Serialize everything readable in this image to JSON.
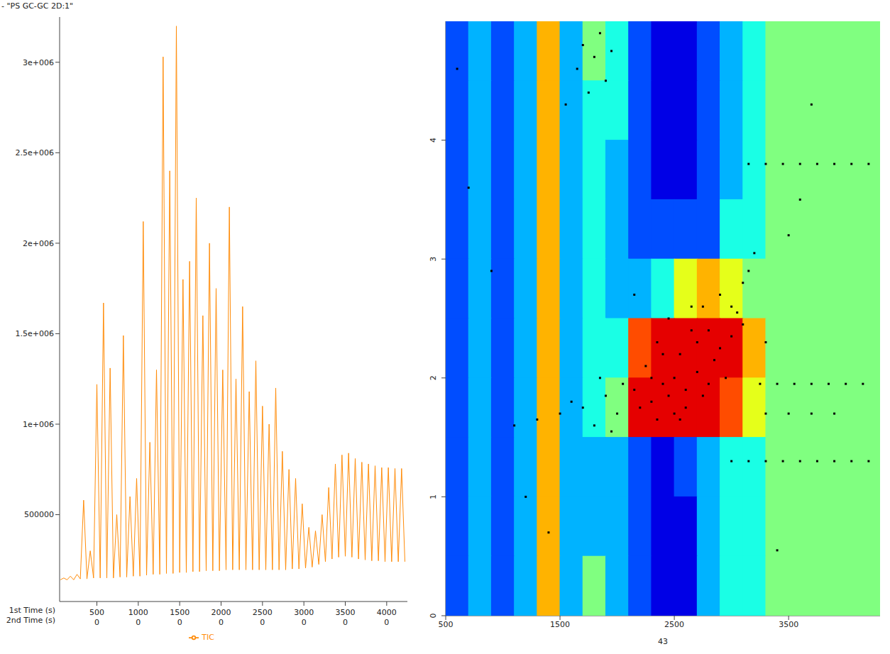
{
  "chart_data": [
    {
      "type": "line",
      "title": "- \"PS GC-GC 2D:1\"",
      "x_label": "1st Time (s)",
      "x2_label": "2nd Time (s)",
      "x": [
        60,
        100,
        140,
        180,
        220,
        260,
        300,
        340,
        380,
        420,
        460,
        500,
        540,
        580,
        620,
        660,
        700,
        740,
        780,
        820,
        860,
        900,
        940,
        980,
        1020,
        1060,
        1100,
        1140,
        1180,
        1220,
        1260,
        1300,
        1340,
        1380,
        1420,
        1460,
        1500,
        1540,
        1580,
        1620,
        1660,
        1700,
        1740,
        1780,
        1820,
        1860,
        1900,
        1940,
        1980,
        2020,
        2060,
        2100,
        2140,
        2180,
        2220,
        2260,
        2300,
        2340,
        2380,
        2420,
        2460,
        2500,
        2540,
        2580,
        2620,
        2660,
        2700,
        2740,
        2780,
        2820,
        2860,
        2900,
        2940,
        2980,
        3020,
        3060,
        3100,
        3140,
        3180,
        3220,
        3260,
        3300,
        3340,
        3380,
        3420,
        3460,
        3500,
        3540,
        3580,
        3620,
        3660,
        3700,
        3740,
        3780,
        3820,
        3860,
        3900,
        3940,
        3980,
        4020,
        4060,
        4100,
        4140,
        4180,
        4220
      ],
      "series": [
        {
          "name": "TIC",
          "color": "#ff8c0a",
          "values": [
            140000,
            150000,
            140000,
            160000,
            140000,
            170000,
            145000,
            580000,
            145000,
            300000,
            150000,
            1220000,
            150000,
            1670000,
            150000,
            1310000,
            150000,
            500000,
            155000,
            1490000,
            155000,
            600000,
            160000,
            700000,
            160000,
            2120000,
            165000,
            900000,
            170000,
            1300000,
            170000,
            3030000,
            175000,
            2400000,
            175000,
            3200000,
            180000,
            1800000,
            180000,
            1900000,
            185000,
            2250000,
            185000,
            1600000,
            190000,
            2000000,
            190000,
            1750000,
            190000,
            1300000,
            195000,
            2200000,
            195000,
            1250000,
            195000,
            1650000,
            195000,
            1180000,
            195000,
            1350000,
            195000,
            1100000,
            195000,
            1000000,
            195000,
            1200000,
            195000,
            850000,
            195000,
            750000,
            200000,
            700000,
            200000,
            560000,
            205000,
            430000,
            210000,
            410000,
            225000,
            500000,
            240000,
            650000,
            255000,
            780000,
            265000,
            830000,
            270000,
            840000,
            265000,
            810000,
            255000,
            790000,
            250000,
            780000,
            245000,
            770000,
            245000,
            760000,
            240000,
            760000,
            240000,
            755000,
            240000,
            755000,
            240000
          ]
        }
      ],
      "xlim": [
        50,
        4250
      ],
      "xticks": [
        500,
        1000,
        1500,
        2000,
        2500,
        3000,
        3500,
        4000
      ],
      "second_time_ticks": [
        0,
        0,
        0,
        0,
        0,
        0,
        0,
        0
      ],
      "ylim": [
        20000,
        3250000
      ],
      "yticks": [
        500000,
        {
          "value": 1000000,
          "label": "1e+006"
        },
        {
          "value": 1500000,
          "label": "1.5e+006"
        },
        {
          "value": 2000000,
          "label": "2e+006"
        },
        {
          "value": 2500000,
          "label": "2.5e+006"
        },
        {
          "value": 3000000,
          "label": "3e+006"
        }
      ],
      "legend": "bottom"
    },
    {
      "type": "heatmap",
      "x_label": "43",
      "xlim": [
        500,
        4300
      ],
      "xticks": [
        500,
        1500,
        2500,
        3500
      ],
      "ylim": [
        0,
        5
      ],
      "yticks": [
        0,
        1,
        2,
        3,
        4
      ],
      "cells": {
        "x": [
          600,
          800,
          1000,
          1200,
          1400,
          1600,
          1800,
          2000,
          2200,
          2400,
          2600,
          2800,
          3000,
          3200,
          3400,
          3600,
          3800,
          4000,
          4200
        ],
        "y": [
          4.75,
          4.25,
          3.75,
          3.25,
          2.75,
          2.25,
          1.75,
          1.25,
          0.75,
          0.25
        ],
        "values": [
          [
            2,
            3,
            2,
            3,
            7,
            3,
            5,
            4,
            2,
            1,
            1,
            2,
            3,
            4,
            5,
            5,
            5,
            5,
            5
          ],
          [
            2,
            3,
            2,
            3,
            7,
            3,
            4,
            4,
            2,
            1,
            1,
            2,
            3,
            4,
            5,
            5,
            5,
            5,
            5
          ],
          [
            2,
            3,
            2,
            3,
            7,
            3,
            4,
            3,
            2,
            1,
            1,
            2,
            3,
            4,
            5,
            5,
            5,
            5,
            5
          ],
          [
            2,
            3,
            2,
            3,
            7,
            3,
            4,
            3,
            2,
            2,
            2,
            2,
            4,
            4,
            5,
            5,
            5,
            5,
            5
          ],
          [
            2,
            3,
            2,
            3,
            7,
            3,
            4,
            3,
            3,
            4,
            6,
            7,
            6,
            5,
            5,
            5,
            5,
            5,
            5
          ],
          [
            2,
            3,
            2,
            3,
            7,
            3,
            4,
            4,
            8,
            9,
            9,
            9,
            9,
            7,
            5,
            5,
            5,
            5,
            5
          ],
          [
            2,
            3,
            2,
            3,
            7,
            3,
            4,
            5,
            9,
            9,
            9,
            9,
            8,
            6,
            5,
            5,
            5,
            5,
            5
          ],
          [
            2,
            3,
            2,
            3,
            7,
            3,
            3,
            3,
            2,
            1,
            2,
            3,
            4,
            4,
            5,
            5,
            5,
            5,
            5
          ],
          [
            2,
            3,
            2,
            3,
            7,
            3,
            3,
            3,
            2,
            1,
            1,
            3,
            4,
            4,
            5,
            5,
            5,
            5,
            5
          ],
          [
            2,
            3,
            2,
            3,
            7,
            3,
            5,
            3,
            2,
            1,
            1,
            3,
            4,
            4,
            5,
            5,
            5,
            5,
            5
          ]
        ]
      },
      "color_range": [
        0,
        10
      ],
      "points": {
        "color": "#000000",
        "x": [
          2150,
          2200,
          2250,
          2300,
          2350,
          2400,
          2450,
          2500,
          2550,
          2600,
          2650,
          2700,
          2750,
          2800,
          2850,
          2900,
          2950,
          3000,
          3050,
          3100,
          3150,
          3200,
          2300,
          2400,
          2500,
          2600,
          2700,
          2800,
          2900,
          2450,
          2550,
          2350,
          2650,
          2750,
          3000,
          3100,
          1100,
          1300,
          1500,
          1600,
          1700,
          1800,
          1900,
          2000,
          2050,
          1850,
          1950,
          1650,
          1700,
          1750,
          1800,
          1850,
          1900,
          1950,
          1550,
          3150,
          3300,
          3450,
          3600,
          3750,
          3900,
          4050,
          4200,
          3250,
          3400,
          3550,
          3700,
          3850,
          4000,
          4150,
          3000,
          3150,
          3300,
          3450,
          3600,
          3750,
          3900,
          4050,
          4200,
          3300,
          3500,
          3700,
          3900,
          3500,
          3600,
          3700,
          3400,
          600,
          700,
          900,
          1200,
          1400,
          2150,
          3300
        ],
        "y": [
          1.9,
          1.75,
          2.1,
          1.8,
          2.3,
          1.95,
          2.5,
          1.7,
          2.2,
          1.9,
          2.6,
          2.05,
          1.85,
          2.4,
          2.15,
          2.7,
          2.0,
          2.35,
          2.55,
          2.8,
          2.9,
          3.05,
          2.0,
          2.2,
          2.0,
          1.75,
          2.3,
          1.95,
          2.25,
          1.85,
          1.65,
          1.65,
          2.4,
          2.6,
          2.6,
          2.45,
          1.6,
          1.65,
          1.7,
          1.8,
          1.75,
          1.6,
          1.85,
          1.7,
          1.95,
          2.0,
          1.55,
          4.6,
          4.8,
          4.4,
          4.7,
          4.9,
          4.5,
          4.75,
          4.3,
          3.8,
          3.8,
          3.8,
          3.8,
          3.8,
          3.8,
          3.8,
          3.8,
          1.95,
          1.95,
          1.95,
          1.95,
          1.95,
          1.95,
          1.95,
          1.3,
          1.3,
          1.3,
          1.3,
          1.3,
          1.3,
          1.3,
          1.3,
          1.3,
          1.7,
          1.7,
          1.7,
          1.7,
          3.2,
          3.5,
          4.3,
          0.55,
          4.6,
          3.6,
          2.9,
          1.0,
          0.7,
          2.7,
          2.3
        ]
      }
    }
  ]
}
